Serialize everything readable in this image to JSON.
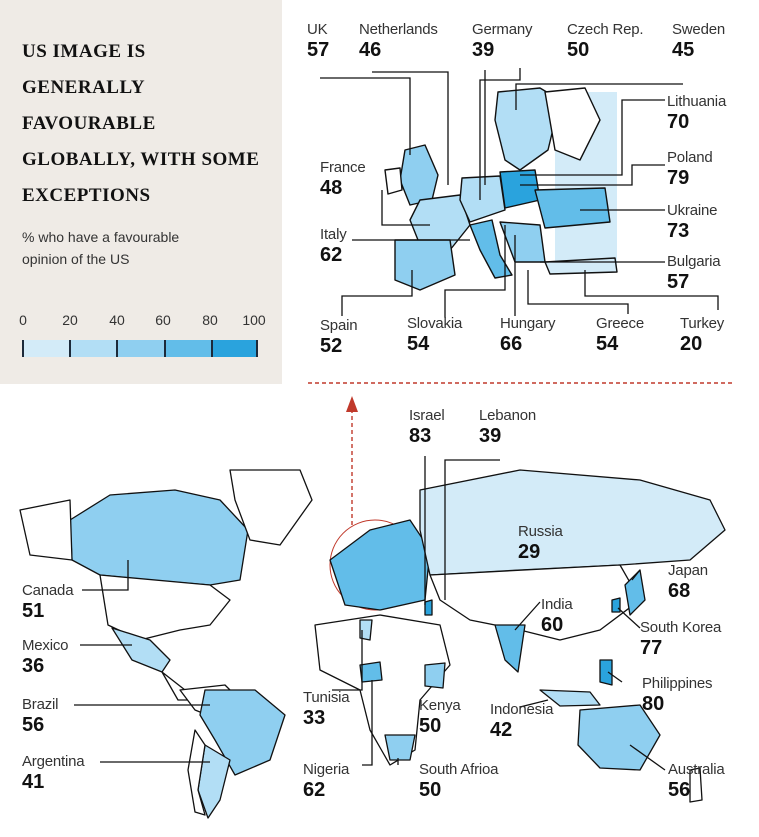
{
  "title": "US IMAGE IS GENERALLY FAVOURABLE GLOBALLY, WITH SOME EXCEPTIONS",
  "subtitle": "% who have a favourable opinion of the US",
  "scale": {
    "ticks": [
      "0",
      "20",
      "40",
      "60",
      "80",
      "100"
    ],
    "colors": [
      "#d3ebf8",
      "#b2def5",
      "#8fcff0",
      "#62bde9",
      "#2aa3dd"
    ]
  },
  "map_colors": {
    "land_no_data": "#ffffff",
    "outline": "#111111",
    "arrow": "#c0392b"
  },
  "europe": [
    {
      "country": "UK",
      "value": 57
    },
    {
      "country": "Netherlands",
      "value": 46
    },
    {
      "country": "Germany",
      "value": 39
    },
    {
      "country": "Czech Rep.",
      "value": 50
    },
    {
      "country": "Sweden",
      "value": 45
    },
    {
      "country": "Lithuania",
      "value": 70
    },
    {
      "country": "Poland",
      "value": 79
    },
    {
      "country": "Ukraine",
      "value": 73
    },
    {
      "country": "Bulgaria",
      "value": 57
    },
    {
      "country": "Turkey",
      "value": 20
    },
    {
      "country": "Greece",
      "value": 54
    },
    {
      "country": "Hungary",
      "value": 66
    },
    {
      "country": "Slovakia",
      "value": 54
    },
    {
      "country": "Spain",
      "value": 52
    },
    {
      "country": "Italy",
      "value": 62
    },
    {
      "country": "France",
      "value": 48
    }
  ],
  "world": [
    {
      "country": "Israel",
      "value": 83
    },
    {
      "country": "Lebanon",
      "value": 39
    },
    {
      "country": "Russia",
      "value": 29
    },
    {
      "country": "Canada",
      "value": 51
    },
    {
      "country": "Japan",
      "value": 68
    },
    {
      "country": "Mexico",
      "value": 36
    },
    {
      "country": "India",
      "value": 60
    },
    {
      "country": "South Korea",
      "value": 77
    },
    {
      "country": "Brazil",
      "value": 56
    },
    {
      "country": "Philippines",
      "value": 80
    },
    {
      "country": "Tunisia",
      "value": 33
    },
    {
      "country": "Kenya",
      "value": 50
    },
    {
      "country": "Indonesia",
      "value": 42
    },
    {
      "country": "Argentina",
      "value": 41
    },
    {
      "country": "Nigeria",
      "value": 62
    },
    {
      "country": "South Afrioa",
      "value": 50
    },
    {
      "country": "Australia",
      "value": 56
    }
  ]
}
